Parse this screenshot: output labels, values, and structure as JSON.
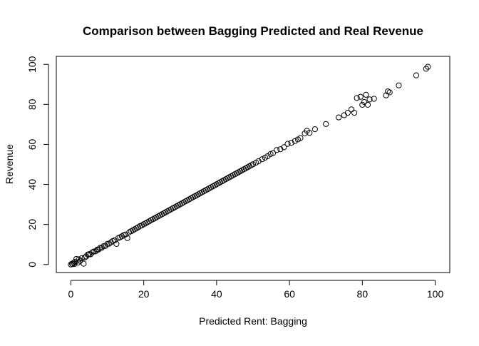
{
  "chart_data": {
    "type": "scatter",
    "title": "Comparison between Bagging Predicted and Real Revenue",
    "xlabel": "Predicted  Rent: Bagging",
    "ylabel": "Revenue",
    "xlim": [
      -4,
      104
    ],
    "ylim": [
      -4,
      104
    ],
    "xticks": [
      0,
      20,
      40,
      60,
      80,
      100
    ],
    "yticks": [
      0,
      20,
      40,
      60,
      80,
      100
    ],
    "x_tick_labels": [
      "0",
      "20",
      "40",
      "60",
      "80",
      "100"
    ],
    "y_tick_labels": [
      "0",
      "20",
      "40",
      "60",
      "80",
      "100"
    ],
    "grid": false,
    "legend": "none",
    "marker": "open-circle",
    "colors": {
      "marker": "#000000",
      "axis": "#000000",
      "background": "#ffffff"
    },
    "points": [
      [
        0.0,
        0.0
      ],
      [
        0.3,
        0.4
      ],
      [
        0.5,
        0.2
      ],
      [
        0.8,
        0.9
      ],
      [
        1.0,
        0.3
      ],
      [
        1.2,
        1.4
      ],
      [
        1.5,
        2.8
      ],
      [
        2.0,
        1.0
      ],
      [
        2.2,
        2.6
      ],
      [
        2.5,
        1.8
      ],
      [
        3.0,
        3.2
      ],
      [
        3.5,
        0.4
      ],
      [
        3.8,
        3.5
      ],
      [
        4.2,
        4.0
      ],
      [
        4.6,
        4.9
      ],
      [
        5.0,
        5.2
      ],
      [
        5.4,
        5.1
      ],
      [
        5.9,
        6.1
      ],
      [
        6.3,
        6.5
      ],
      [
        6.8,
        6.6
      ],
      [
        7.2,
        7.4
      ],
      [
        7.6,
        7.5
      ],
      [
        8.0,
        8.3
      ],
      [
        8.5,
        8.4
      ],
      [
        9.0,
        9.2
      ],
      [
        9.5,
        9.3
      ],
      [
        10.0,
        10.3
      ],
      [
        10.5,
        10.4
      ],
      [
        11.0,
        11.1
      ],
      [
        11.5,
        11.7
      ],
      [
        12.0,
        12.1
      ],
      [
        12.5,
        10.3
      ],
      [
        13.0,
        13.2
      ],
      [
        13.5,
        13.6
      ],
      [
        14.0,
        14.1
      ],
      [
        14.5,
        14.7
      ],
      [
        15.0,
        15.0
      ],
      [
        15.5,
        13.2
      ],
      [
        16.0,
        16.1
      ],
      [
        16.5,
        16.6
      ],
      [
        17.0,
        17.1
      ],
      [
        17.5,
        17.6
      ],
      [
        18.0,
        18.1
      ],
      [
        18.5,
        18.6
      ],
      [
        19.0,
        19.2
      ],
      [
        19.5,
        19.6
      ],
      [
        20.0,
        20.1
      ],
      [
        20.5,
        20.6
      ],
      [
        21.0,
        21.1
      ],
      [
        21.5,
        21.6
      ],
      [
        22.0,
        22.2
      ],
      [
        22.5,
        22.6
      ],
      [
        23.0,
        23.1
      ],
      [
        23.5,
        23.6
      ],
      [
        24.0,
        24.1
      ],
      [
        24.5,
        24.6
      ],
      [
        25.0,
        25.1
      ],
      [
        25.5,
        25.6
      ],
      [
        26.0,
        26.1
      ],
      [
        26.5,
        26.6
      ],
      [
        27.0,
        27.1
      ],
      [
        27.5,
        27.6
      ],
      [
        28.0,
        28.1
      ],
      [
        28.5,
        28.6
      ],
      [
        29.0,
        29.1
      ],
      [
        29.5,
        29.6
      ],
      [
        30.0,
        30.1
      ],
      [
        30.5,
        30.6
      ],
      [
        31.0,
        31.1
      ],
      [
        31.5,
        31.6
      ],
      [
        32.0,
        32.1
      ],
      [
        32.5,
        32.6
      ],
      [
        33.0,
        33.1
      ],
      [
        33.5,
        33.6
      ],
      [
        34.0,
        34.1
      ],
      [
        34.5,
        34.6
      ],
      [
        35.0,
        35.1
      ],
      [
        35.5,
        35.6
      ],
      [
        36.0,
        36.1
      ],
      [
        36.5,
        36.6
      ],
      [
        37.0,
        37.1
      ],
      [
        37.5,
        37.6
      ],
      [
        38.0,
        38.1
      ],
      [
        38.5,
        38.6
      ],
      [
        39.0,
        39.1
      ],
      [
        39.5,
        39.6
      ],
      [
        40.0,
        40.1
      ],
      [
        40.5,
        40.6
      ],
      [
        41.0,
        41.1
      ],
      [
        41.5,
        41.6
      ],
      [
        42.0,
        42.1
      ],
      [
        42.5,
        42.6
      ],
      [
        43.0,
        43.1
      ],
      [
        43.5,
        43.6
      ],
      [
        44.0,
        44.1
      ],
      [
        44.5,
        44.6
      ],
      [
        45.0,
        45.1
      ],
      [
        45.5,
        45.6
      ],
      [
        46.0,
        46.1
      ],
      [
        46.5,
        46.6
      ],
      [
        47.0,
        47.1
      ],
      [
        47.5,
        47.6
      ],
      [
        48.0,
        48.1
      ],
      [
        48.5,
        48.6
      ],
      [
        49.0,
        49.1
      ],
      [
        49.5,
        49.6
      ],
      [
        50.0,
        50.1
      ],
      [
        50.8,
        50.9
      ],
      [
        51.5,
        51.6
      ],
      [
        52.5,
        52.6
      ],
      [
        53.3,
        53.4
      ],
      [
        54.0,
        54.1
      ],
      [
        54.8,
        55.2
      ],
      [
        55.5,
        55.7
      ],
      [
        56.5,
        57.2
      ],
      [
        57.5,
        57.6
      ],
      [
        58.5,
        58.6
      ],
      [
        59.5,
        60.3
      ],
      [
        60.5,
        60.8
      ],
      [
        61.5,
        61.7
      ],
      [
        62.3,
        62.5
      ],
      [
        63.0,
        63.2
      ],
      [
        64.2,
        65.5
      ],
      [
        64.8,
        66.8
      ],
      [
        65.5,
        65.8
      ],
      [
        67.0,
        67.6
      ],
      [
        70.0,
        70.2
      ],
      [
        73.5,
        73.5
      ],
      [
        75.0,
        74.6
      ],
      [
        76.0,
        75.8
      ],
      [
        77.0,
        77.5
      ],
      [
        77.8,
        75.8
      ],
      [
        78.5,
        83.2
      ],
      [
        79.5,
        83.8
      ],
      [
        80.0,
        79.8
      ],
      [
        80.5,
        81.2
      ],
      [
        81.0,
        84.8
      ],
      [
        81.5,
        79.8
      ],
      [
        82.0,
        82.5
      ],
      [
        83.2,
        82.8
      ],
      [
        86.5,
        84.5
      ],
      [
        87.0,
        86.5
      ],
      [
        87.5,
        86.0
      ],
      [
        90.0,
        89.5
      ],
      [
        94.8,
        94.5
      ],
      [
        97.5,
        97.8
      ],
      [
        98.0,
        98.8
      ]
    ]
  }
}
